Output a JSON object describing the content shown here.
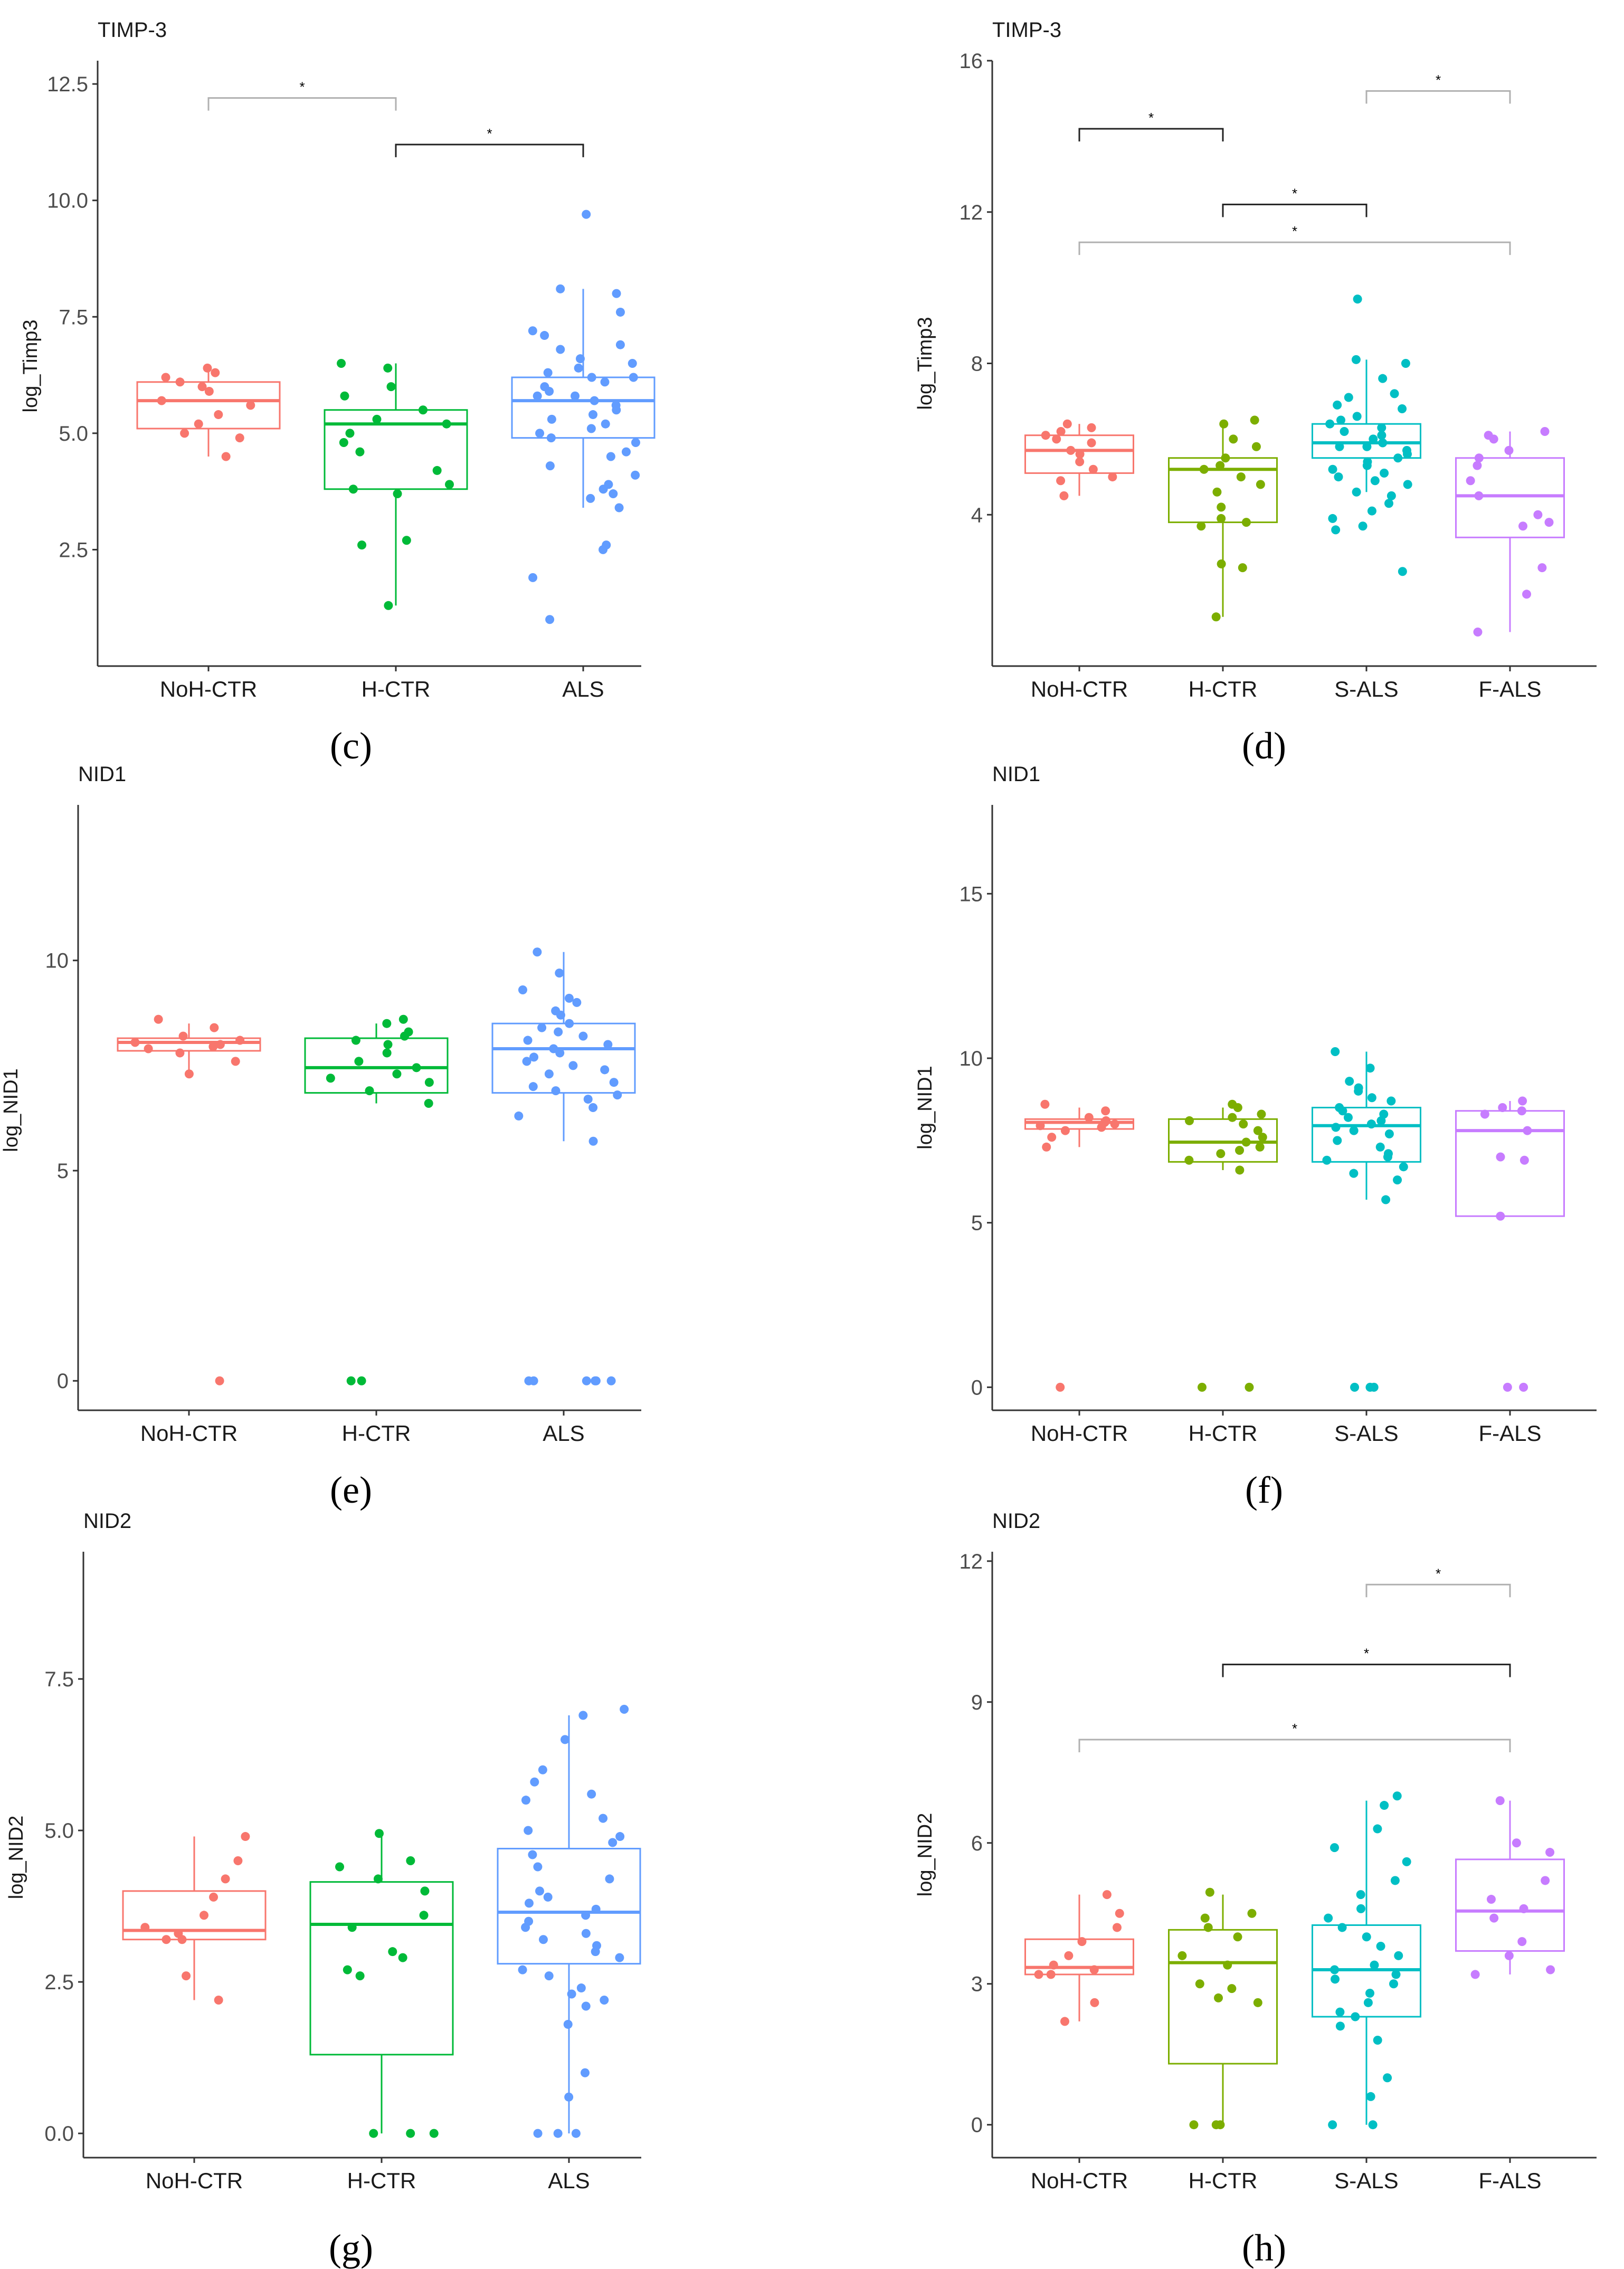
{
  "colors": {
    "NoH-CTR": "#f8766d",
    "H-CTR_3": "#00ba38",
    "ALS": "#619cff",
    "H-CTR_4": "#7cae00",
    "S-ALS": "#00bfc4",
    "F-ALS": "#c77cff"
  },
  "chart_data": [
    {
      "panel": "(c)",
      "type": "box",
      "title": "TIMP-3",
      "ylabel": "log_Timp3",
      "xlabel": "",
      "ylim": [
        0.0,
        13.0
      ],
      "yticks": [
        2.5,
        5.0,
        7.5,
        10.0,
        12.5
      ],
      "ytick_labels": [
        "2.5",
        "5.0",
        "7.5",
        "10.0",
        "12.5"
      ],
      "categories": [
        "NoH-CTR",
        "H-CTR",
        "ALS"
      ],
      "color_keys": [
        "NoH-CTR",
        "H-CTR_3",
        "ALS"
      ],
      "boxes": [
        {
          "q1": 5.1,
          "median": 5.7,
          "q3": 6.1,
          "lo": 4.5,
          "hi": 6.4
        },
        {
          "q1": 3.8,
          "median": 5.2,
          "q3": 5.5,
          "lo": 1.3,
          "hi": 6.5
        },
        {
          "q1": 4.9,
          "median": 5.7,
          "q3": 6.2,
          "lo": 3.4,
          "hi": 8.1
        }
      ],
      "points": [
        [
          6.4,
          6.3,
          6.2,
          6.1,
          6.0,
          5.9,
          5.7,
          5.6,
          5.4,
          5.2,
          5.0,
          4.9,
          4.5
        ],
        [
          6.5,
          6.4,
          6.0,
          5.8,
          5.5,
          5.3,
          5.2,
          5.0,
          4.8,
          4.6,
          4.2,
          3.9,
          3.8,
          3.7,
          2.7,
          2.6,
          1.3
        ],
        [
          9.7,
          8.1,
          8.0,
          7.6,
          7.2,
          7.1,
          6.9,
          6.8,
          6.6,
          6.5,
          6.4,
          6.3,
          6.2,
          6.2,
          6.1,
          6.0,
          5.9,
          5.8,
          5.8,
          5.7,
          5.6,
          5.5,
          5.4,
          5.3,
          5.2,
          5.1,
          5.0,
          4.9,
          4.8,
          4.6,
          4.5,
          4.3,
          4.1,
          3.9,
          3.8,
          3.7,
          3.6,
          3.4,
          2.6,
          2.5,
          1.9,
          1.0
        ]
      ],
      "significance": [
        {
          "from": 0,
          "to": 1,
          "y": 12.2,
          "label": "*",
          "color": "#b0b0b0"
        },
        {
          "from": 1,
          "to": 2,
          "y": 11.2,
          "label": "*",
          "color": "#222222"
        }
      ]
    },
    {
      "panel": "(d)",
      "type": "box",
      "title": "TIMP-3",
      "ylabel": "log_Timp3",
      "xlabel": "",
      "ylim": [
        0.0,
        16.0
      ],
      "yticks": [
        4,
        8,
        12,
        16
      ],
      "ytick_labels": [
        "4",
        "8",
        "12",
        "16"
      ],
      "categories": [
        "NoH-CTR",
        "H-CTR",
        "S-ALS",
        "F-ALS"
      ],
      "color_keys": [
        "NoH-CTR",
        "H-CTR_4",
        "S-ALS",
        "F-ALS"
      ],
      "boxes": [
        {
          "q1": 5.1,
          "median": 5.7,
          "q3": 6.1,
          "lo": 4.5,
          "hi": 6.4
        },
        {
          "q1": 3.8,
          "median": 5.2,
          "q3": 5.5,
          "lo": 1.3,
          "hi": 6.5
        },
        {
          "q1": 5.5,
          "median": 5.9,
          "q3": 6.4,
          "lo": 4.6,
          "hi": 8.1
        },
        {
          "q1": 3.4,
          "median": 4.5,
          "q3": 5.5,
          "lo": 0.9,
          "hi": 6.2
        }
      ],
      "points": [
        [
          6.4,
          6.3,
          6.2,
          6.1,
          6.0,
          5.9,
          5.7,
          5.6,
          5.4,
          5.2,
          5.0,
          4.9,
          4.5
        ],
        [
          6.5,
          6.4,
          6.0,
          5.8,
          5.5,
          5.3,
          5.2,
          5.0,
          4.8,
          4.6,
          4.2,
          3.9,
          3.8,
          3.7,
          2.7,
          2.6,
          1.3
        ],
        [
          9.7,
          8.1,
          8.0,
          7.6,
          7.2,
          7.1,
          6.9,
          6.8,
          6.6,
          6.5,
          6.4,
          6.3,
          6.2,
          6.1,
          6.0,
          5.9,
          5.8,
          5.8,
          5.7,
          5.6,
          5.5,
          5.4,
          5.3,
          5.2,
          5.1,
          5.0,
          4.9,
          4.8,
          4.6,
          4.5,
          4.3,
          4.1,
          3.9,
          3.7,
          3.6,
          2.5
        ],
        [
          6.2,
          6.1,
          6.0,
          5.7,
          5.5,
          5.3,
          4.9,
          4.5,
          4.0,
          3.8,
          3.7,
          2.6,
          1.9,
          0.9
        ]
      ],
      "significance": [
        {
          "from": 0,
          "to": 1,
          "y": 14.2,
          "label": "*",
          "color": "#222222"
        },
        {
          "from": 2,
          "to": 3,
          "y": 15.2,
          "label": "*",
          "color": "#b0b0b0"
        },
        {
          "from": 1,
          "to": 2,
          "y": 12.2,
          "label": "*",
          "color": "#222222"
        },
        {
          "from": 0,
          "to": 3,
          "y": 11.2,
          "label": "*",
          "color": "#b0b0b0"
        }
      ]
    },
    {
      "panel": "(e)",
      "type": "box",
      "title": "NID1",
      "ylabel": "log_NID1",
      "xlabel": "",
      "ylim": [
        -0.7,
        13.7
      ],
      "yticks": [
        0,
        5,
        10
      ],
      "ytick_labels": [
        "0",
        "5",
        "10"
      ],
      "categories": [
        "NoH-CTR",
        "H-CTR",
        "ALS"
      ],
      "color_keys": [
        "NoH-CTR",
        "H-CTR_3",
        "ALS"
      ],
      "boxes": [
        {
          "q1": 7.85,
          "median": 8.05,
          "q3": 8.15,
          "lo": 7.3,
          "hi": 8.5
        },
        {
          "q1": 6.85,
          "median": 7.45,
          "q3": 8.15,
          "lo": 6.6,
          "hi": 8.5
        },
        {
          "q1": 6.85,
          "median": 7.9,
          "q3": 8.5,
          "lo": 5.7,
          "hi": 10.2
        }
      ],
      "points": [
        [
          8.6,
          8.4,
          8.2,
          8.1,
          8.05,
          8.0,
          7.95,
          7.9,
          7.8,
          7.6,
          7.3,
          0.0
        ],
        [
          8.6,
          8.5,
          8.3,
          8.2,
          8.1,
          8.0,
          7.8,
          7.6,
          7.45,
          7.3,
          7.2,
          7.1,
          6.9,
          6.6,
          0.0,
          0.0
        ],
        [
          10.2,
          9.7,
          9.3,
          9.1,
          9.0,
          8.8,
          8.7,
          8.5,
          8.4,
          8.3,
          8.2,
          8.1,
          8.0,
          7.9,
          7.8,
          7.7,
          7.6,
          7.5,
          7.4,
          7.3,
          7.1,
          7.0,
          6.9,
          6.8,
          6.7,
          6.5,
          6.3,
          5.7,
          0.0,
          0.0,
          0.0,
          0.0,
          0.0,
          0.0
        ]
      ],
      "significance": []
    },
    {
      "panel": "(f)",
      "type": "box",
      "title": "NID1",
      "ylabel": "log_NID1",
      "xlabel": "",
      "ylim": [
        -0.7,
        17.7
      ],
      "yticks": [
        0,
        5,
        10,
        15
      ],
      "ytick_labels": [
        "0",
        "5",
        "10",
        "15"
      ],
      "categories": [
        "NoH-CTR",
        "H-CTR",
        "S-ALS",
        "F-ALS"
      ],
      "color_keys": [
        "NoH-CTR",
        "H-CTR_4",
        "S-ALS",
        "F-ALS"
      ],
      "boxes": [
        {
          "q1": 7.85,
          "median": 8.05,
          "q3": 8.15,
          "lo": 7.3,
          "hi": 8.5
        },
        {
          "q1": 6.85,
          "median": 7.45,
          "q3": 8.15,
          "lo": 6.6,
          "hi": 8.5
        },
        {
          "q1": 6.85,
          "median": 7.95,
          "q3": 8.5,
          "lo": 5.7,
          "hi": 10.2
        },
        {
          "q1": 5.2,
          "median": 7.8,
          "q3": 8.4,
          "lo": 5.2,
          "hi": 8.7
        }
      ],
      "points": [
        [
          8.6,
          8.4,
          8.2,
          8.1,
          8.05,
          8.0,
          7.95,
          7.9,
          7.8,
          7.6,
          7.3,
          0.0
        ],
        [
          8.6,
          8.5,
          8.3,
          8.2,
          8.1,
          8.0,
          7.8,
          7.6,
          7.45,
          7.3,
          7.2,
          7.1,
          6.9,
          6.6,
          0.0,
          0.0
        ],
        [
          10.2,
          9.7,
          9.3,
          9.1,
          9.0,
          8.8,
          8.7,
          8.5,
          8.4,
          8.3,
          8.2,
          8.1,
          8.0,
          7.9,
          7.8,
          7.7,
          7.5,
          7.3,
          7.1,
          7.0,
          6.9,
          6.7,
          6.5,
          6.3,
          5.7,
          0.0,
          0.0,
          0.0
        ],
        [
          8.7,
          8.5,
          8.4,
          8.3,
          7.8,
          7.0,
          6.9,
          5.2,
          0.0,
          0.0
        ]
      ],
      "significance": []
    },
    {
      "panel": "(g)",
      "type": "box",
      "title": "NID2",
      "ylabel": "log_NID2",
      "xlabel": "",
      "ylim": [
        -0.4,
        9.6
      ],
      "yticks": [
        0.0,
        2.5,
        5.0,
        7.5
      ],
      "ytick_labels": [
        "0.0",
        "2.5",
        "5.0",
        "7.5"
      ],
      "categories": [
        "NoH-CTR",
        "H-CTR",
        "ALS"
      ],
      "color_keys": [
        "NoH-CTR",
        "H-CTR_3",
        "ALS"
      ],
      "boxes": [
        {
          "q1": 3.2,
          "median": 3.35,
          "q3": 4.0,
          "lo": 2.2,
          "hi": 4.9
        },
        {
          "q1": 1.3,
          "median": 3.45,
          "q3": 4.15,
          "lo": 0.0,
          "hi": 4.9
        },
        {
          "q1": 2.8,
          "median": 3.65,
          "q3": 4.7,
          "lo": 0.0,
          "hi": 6.9
        }
      ],
      "points": [
        [
          4.9,
          4.5,
          4.2,
          3.9,
          3.6,
          3.4,
          3.3,
          3.2,
          3.2,
          2.6,
          2.2
        ],
        [
          4.95,
          4.5,
          4.4,
          4.2,
          4.0,
          3.6,
          3.4,
          3.0,
          2.9,
          2.7,
          2.6,
          0.0,
          0.0,
          0.0
        ],
        [
          7.0,
          6.9,
          6.5,
          6.0,
          5.8,
          5.6,
          5.5,
          5.2,
          5.0,
          4.9,
          4.8,
          4.6,
          4.4,
          4.2,
          4.0,
          3.9,
          3.8,
          3.7,
          3.6,
          3.5,
          3.4,
          3.3,
          3.2,
          3.1,
          3.0,
          2.9,
          2.7,
          2.6,
          2.4,
          2.3,
          2.2,
          2.1,
          1.8,
          1.0,
          0.6,
          0.0,
          0.0,
          0.0
        ]
      ],
      "significance": []
    },
    {
      "panel": "(h)",
      "type": "box",
      "title": "NID2",
      "ylabel": "log_NID2",
      "xlabel": "",
      "ylim": [
        -0.7,
        12.2
      ],
      "yticks": [
        0,
        3,
        6,
        9,
        12
      ],
      "ytick_labels": [
        "0",
        "3",
        "6",
        "9",
        "12"
      ],
      "categories": [
        "NoH-CTR",
        "H-CTR",
        "S-ALS",
        "F-ALS"
      ],
      "color_keys": [
        "NoH-CTR",
        "H-CTR_4",
        "S-ALS",
        "F-ALS"
      ],
      "boxes": [
        {
          "q1": 3.2,
          "median": 3.35,
          "q3": 3.95,
          "lo": 2.2,
          "hi": 4.9
        },
        {
          "q1": 1.3,
          "median": 3.45,
          "q3": 4.15,
          "lo": 0.0,
          "hi": 4.9
        },
        {
          "q1": 2.3,
          "median": 3.3,
          "q3": 4.25,
          "lo": 0.0,
          "hi": 6.9
        },
        {
          "q1": 3.7,
          "median": 4.55,
          "q3": 5.65,
          "lo": 3.2,
          "hi": 6.9
        }
      ],
      "points": [
        [
          4.9,
          4.5,
          4.2,
          3.9,
          3.6,
          3.4,
          3.3,
          3.2,
          3.2,
          2.6,
          2.2
        ],
        [
          4.95,
          4.5,
          4.4,
          4.2,
          4.0,
          3.6,
          3.4,
          3.0,
          2.9,
          2.7,
          2.6,
          0.0,
          0.0,
          0.0
        ],
        [
          7.0,
          6.8,
          6.3,
          5.9,
          5.6,
          5.2,
          4.9,
          4.6,
          4.4,
          4.2,
          4.0,
          3.8,
          3.6,
          3.4,
          3.3,
          3.2,
          3.1,
          3.0,
          2.8,
          2.6,
          2.4,
          2.3,
          2.1,
          1.8,
          1.0,
          0.6,
          0.0,
          0.0
        ],
        [
          6.9,
          6.0,
          5.8,
          5.2,
          4.8,
          4.6,
          4.4,
          3.9,
          3.6,
          3.3,
          3.2
        ]
      ],
      "significance": [
        {
          "from": 2,
          "to": 3,
          "y": 11.5,
          "label": "*",
          "color": "#b0b0b0"
        },
        {
          "from": 1,
          "to": 3,
          "y": 9.8,
          "label": "*",
          "color": "#222222"
        },
        {
          "from": 0,
          "to": 3,
          "y": 8.2,
          "label": "*",
          "color": "#b0b0b0"
        }
      ]
    }
  ]
}
